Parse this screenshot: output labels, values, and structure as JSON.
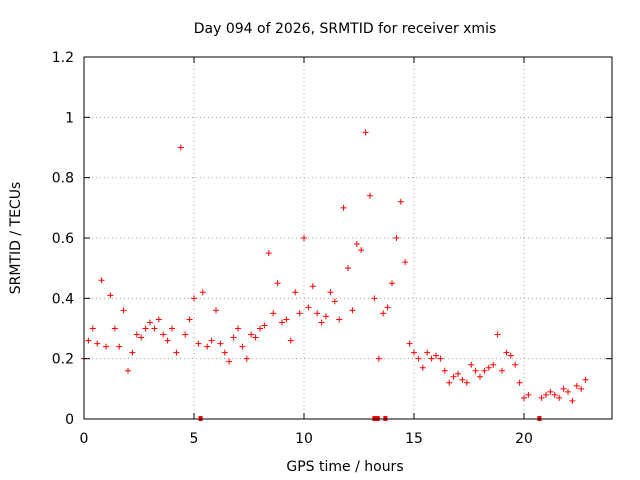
{
  "chart_data": {
    "type": "scatter",
    "title": "Day 094 of 2026, SRMTID for receiver xmis",
    "xlabel": "GPS time / hours",
    "ylabel": "SRMTID / TECUs",
    "xlim": [
      0,
      24
    ],
    "ylim": [
      0,
      1.2
    ],
    "x_ticks": [
      0,
      5,
      10,
      15,
      20
    ],
    "x_tick_labels": [
      "0",
      "5",
      "10",
      "15",
      "20"
    ],
    "y_ticks": [
      0,
      0.2,
      0.4,
      0.6,
      0.8,
      1.0,
      1.2
    ],
    "y_tick_labels": [
      "0",
      "0.2",
      "0.4",
      "0.6",
      "0.8",
      "1",
      "1.2"
    ],
    "grid": true,
    "marker": "+",
    "marker_color": "#ff0000",
    "series": [
      {
        "name": "SRMTID xmis",
        "x": [
          0.0,
          0.2,
          0.4,
          0.6,
          0.8,
          1.0,
          1.2,
          1.4,
          1.6,
          1.8,
          2.0,
          2.2,
          2.4,
          2.6,
          2.8,
          3.0,
          3.2,
          3.4,
          3.6,
          3.8,
          4.0,
          4.2,
          4.4,
          4.6,
          4.8,
          5.0,
          5.2,
          5.4,
          5.6,
          5.8,
          6.0,
          6.2,
          6.4,
          6.6,
          6.8,
          7.0,
          7.2,
          7.4,
          7.6,
          7.8,
          8.0,
          8.2,
          8.4,
          8.6,
          8.8,
          9.0,
          9.2,
          9.4,
          9.6,
          9.8,
          10.0,
          10.2,
          10.4,
          10.6,
          10.8,
          11.0,
          11.2,
          11.4,
          11.6,
          11.8,
          12.0,
          12.2,
          12.4,
          12.6,
          12.8,
          13.0,
          13.2,
          13.4,
          13.6,
          13.8,
          14.0,
          14.2,
          14.4,
          14.6,
          14.8,
          15.0,
          15.2,
          15.4,
          15.6,
          15.8,
          16.0,
          16.2,
          16.4,
          16.6,
          16.8,
          17.0,
          17.2,
          17.4,
          17.6,
          17.8,
          18.0,
          18.2,
          18.4,
          18.6,
          18.8,
          19.0,
          19.2,
          19.4,
          19.6,
          19.8,
          20.0,
          20.2,
          20.8,
          21.0,
          21.2,
          21.4,
          21.6,
          21.8,
          22.0,
          22.2,
          22.4,
          22.6,
          22.8
        ],
        "y": [
          0.2,
          0.26,
          0.3,
          0.25,
          0.46,
          0.24,
          0.41,
          0.3,
          0.24,
          0.36,
          0.16,
          0.22,
          0.28,
          0.27,
          0.3,
          0.32,
          0.3,
          0.33,
          0.28,
          0.26,
          0.3,
          0.22,
          0.9,
          0.28,
          0.33,
          0.4,
          0.25,
          0.42,
          0.24,
          0.26,
          0.36,
          0.25,
          0.22,
          0.19,
          0.27,
          0.3,
          0.24,
          0.2,
          0.28,
          0.27,
          0.3,
          0.31,
          0.55,
          0.35,
          0.45,
          0.32,
          0.33,
          0.26,
          0.42,
          0.35,
          0.6,
          0.37,
          0.44,
          0.35,
          0.32,
          0.34,
          0.42,
          0.39,
          0.33,
          0.7,
          0.5,
          0.36,
          0.58,
          0.56,
          0.95,
          0.74,
          0.4,
          0.2,
          0.35,
          0.37,
          0.45,
          0.6,
          0.72,
          0.52,
          0.25,
          0.22,
          0.2,
          0.17,
          0.22,
          0.2,
          0.21,
          0.2,
          0.16,
          0.12,
          0.14,
          0.15,
          0.13,
          0.12,
          0.18,
          0.16,
          0.14,
          0.16,
          0.17,
          0.18,
          0.28,
          0.16,
          0.22,
          0.21,
          0.18,
          0.12,
          0.07,
          0.08,
          0.07,
          0.08,
          0.09,
          0.08,
          0.07,
          0.1,
          0.09,
          0.06,
          0.11,
          0.1,
          0.13
        ]
      }
    ],
    "gap_marks_x": [
      5.3,
      13.2,
      13.35,
      13.7,
      20.7
    ]
  }
}
